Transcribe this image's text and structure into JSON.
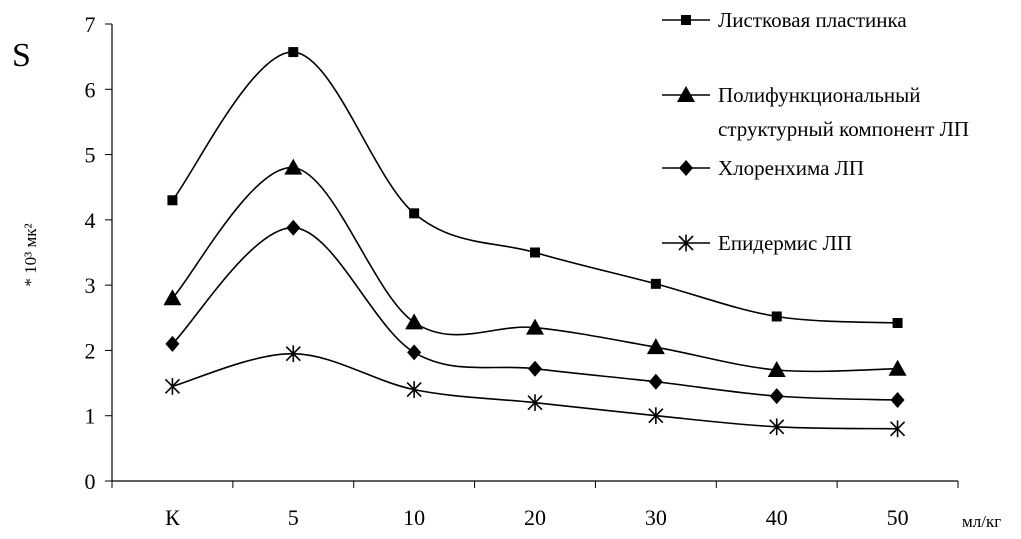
{
  "chart_data": {
    "type": "line",
    "y_symbol": "S",
    "ylabel": "* 10³ мк²",
    "xlabel": "мл/кг",
    "categories": [
      "К",
      "5",
      "10",
      "20",
      "30",
      "40",
      "50"
    ],
    "ylim": [
      0,
      7
    ],
    "yticks": [
      "0",
      "1",
      "2",
      "3",
      "4",
      "5",
      "6",
      "7"
    ],
    "grid": false,
    "legend_position": "top-right",
    "series": [
      {
        "name": "Листковая  пластинка",
        "marker": "square",
        "values": [
          4.3,
          6.57,
          4.1,
          3.5,
          3.02,
          2.52,
          2.42
        ]
      },
      {
        "name": "Полифункциональный структурный компонент  ЛП",
        "marker": "triangle",
        "values": [
          2.8,
          4.8,
          2.43,
          2.35,
          2.05,
          1.7,
          1.72
        ]
      },
      {
        "name": "Хлоренхима  ЛП",
        "marker": "diamond",
        "values": [
          2.1,
          3.88,
          1.97,
          1.72,
          1.52,
          1.3,
          1.24
        ]
      },
      {
        "name": "Епидермис  ЛП",
        "marker": "asterisk",
        "values": [
          1.45,
          1.95,
          1.4,
          1.2,
          1.0,
          0.83,
          0.8
        ]
      }
    ]
  }
}
